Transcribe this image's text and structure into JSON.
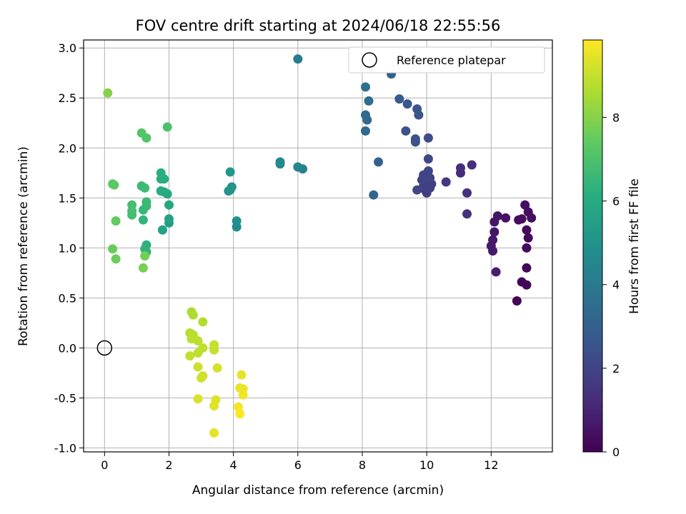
{
  "chart_data": {
    "type": "scatter",
    "title": "FOV centre drift starting at 2024/06/18 22:55:56",
    "xlabel": "Angular distance from reference (arcmin)",
    "ylabel": "Rotation from reference (arcmin)",
    "xlim": [
      -0.65,
      13.9
    ],
    "ylim": [
      -1.04,
      3.08
    ],
    "xticks": [
      0,
      2,
      4,
      6,
      8,
      10,
      12
    ],
    "yticks": [
      -1.0,
      -0.5,
      0.0,
      0.5,
      1.0,
      1.5,
      2.0,
      2.5,
      3.0
    ],
    "grid": true,
    "colormap": "viridis",
    "colorbar": {
      "label": "Hours from first FF file",
      "range": [
        0,
        9.85
      ],
      "ticks": [
        0,
        2,
        4,
        6,
        8
      ]
    },
    "legend": {
      "location": "top-right",
      "entries": [
        {
          "label": "Reference platepar",
          "marker": "open-circle"
        }
      ]
    },
    "reference_point": {
      "x": 0,
      "y": 0
    },
    "points": [
      {
        "x": 12.8,
        "y": 0.47,
        "h": 0.1
      },
      {
        "x": 13.1,
        "y": 0.63,
        "h": 0.15
      },
      {
        "x": 12.95,
        "y": 0.66,
        "h": 0.15
      },
      {
        "x": 13.1,
        "y": 0.8,
        "h": 0.2
      },
      {
        "x": 13.1,
        "y": 1.0,
        "h": 0.25
      },
      {
        "x": 13.15,
        "y": 1.1,
        "h": 0.25
      },
      {
        "x": 13.1,
        "y": 1.18,
        "h": 0.3
      },
      {
        "x": 12.85,
        "y": 1.28,
        "h": 0.3
      },
      {
        "x": 12.95,
        "y": 1.29,
        "h": 0.35
      },
      {
        "x": 13.25,
        "y": 1.3,
        "h": 0.35
      },
      {
        "x": 13.15,
        "y": 1.36,
        "h": 0.35
      },
      {
        "x": 13.05,
        "y": 1.43,
        "h": 0.4
      },
      {
        "x": 12.45,
        "y": 1.3,
        "h": 0.5
      },
      {
        "x": 12.2,
        "y": 1.32,
        "h": 0.55
      },
      {
        "x": 12.1,
        "y": 1.26,
        "h": 0.6
      },
      {
        "x": 12.1,
        "y": 1.16,
        "h": 0.6
      },
      {
        "x": 12.05,
        "y": 1.08,
        "h": 0.65
      },
      {
        "x": 12.0,
        "y": 1.02,
        "h": 0.7
      },
      {
        "x": 12.05,
        "y": 0.97,
        "h": 0.7
      },
      {
        "x": 12.15,
        "y": 0.76,
        "h": 0.8
      },
      {
        "x": 11.05,
        "y": 1.75,
        "h": 1.2
      },
      {
        "x": 11.05,
        "y": 1.8,
        "h": 1.25
      },
      {
        "x": 11.4,
        "y": 1.83,
        "h": 1.3
      },
      {
        "x": 11.25,
        "y": 1.55,
        "h": 1.35
      },
      {
        "x": 11.25,
        "y": 1.34,
        "h": 1.4
      },
      {
        "x": 10.6,
        "y": 1.66,
        "h": 1.6
      },
      {
        "x": 10.0,
        "y": 1.55,
        "h": 1.8
      },
      {
        "x": 9.95,
        "y": 1.58,
        "h": 1.8
      },
      {
        "x": 10.1,
        "y": 1.6,
        "h": 1.85
      },
      {
        "x": 9.9,
        "y": 1.62,
        "h": 1.85
      },
      {
        "x": 10.15,
        "y": 1.64,
        "h": 1.9
      },
      {
        "x": 10.05,
        "y": 1.66,
        "h": 1.9
      },
      {
        "x": 9.85,
        "y": 1.68,
        "h": 1.95
      },
      {
        "x": 10.1,
        "y": 1.7,
        "h": 1.95
      },
      {
        "x": 10.0,
        "y": 1.74,
        "h": 2.0
      },
      {
        "x": 9.9,
        "y": 1.73,
        "h": 2.0
      },
      {
        "x": 10.05,
        "y": 1.77,
        "h": 2.05
      },
      {
        "x": 9.7,
        "y": 1.58,
        "h": 2.1
      },
      {
        "x": 10.05,
        "y": 1.89,
        "h": 2.2
      },
      {
        "x": 10.05,
        "y": 2.1,
        "h": 2.3
      },
      {
        "x": 9.65,
        "y": 2.06,
        "h": 2.4
      },
      {
        "x": 9.65,
        "y": 2.09,
        "h": 2.45
      },
      {
        "x": 9.35,
        "y": 2.17,
        "h": 2.5
      },
      {
        "x": 9.75,
        "y": 2.33,
        "h": 2.6
      },
      {
        "x": 9.7,
        "y": 2.39,
        "h": 2.65
      },
      {
        "x": 9.4,
        "y": 2.44,
        "h": 2.7
      },
      {
        "x": 9.15,
        "y": 2.49,
        "h": 2.8
      },
      {
        "x": 8.9,
        "y": 2.74,
        "h": 3.0
      },
      {
        "x": 8.5,
        "y": 1.86,
        "h": 3.1
      },
      {
        "x": 8.35,
        "y": 1.53,
        "h": 3.2
      },
      {
        "x": 8.1,
        "y": 2.17,
        "h": 3.3
      },
      {
        "x": 8.15,
        "y": 2.28,
        "h": 3.35
      },
      {
        "x": 8.1,
        "y": 2.33,
        "h": 3.4
      },
      {
        "x": 8.2,
        "y": 2.47,
        "h": 3.5
      },
      {
        "x": 8.1,
        "y": 2.61,
        "h": 3.6
      },
      {
        "x": 6.0,
        "y": 2.89,
        "h": 4.1
      },
      {
        "x": 6.15,
        "y": 1.79,
        "h": 4.3
      },
      {
        "x": 6.0,
        "y": 1.81,
        "h": 4.4
      },
      {
        "x": 5.45,
        "y": 1.84,
        "h": 4.5
      },
      {
        "x": 5.45,
        "y": 1.86,
        "h": 4.6
      },
      {
        "x": 4.1,
        "y": 1.21,
        "h": 4.8
      },
      {
        "x": 4.1,
        "y": 1.27,
        "h": 4.9
      },
      {
        "x": 3.85,
        "y": 1.57,
        "h": 5.0
      },
      {
        "x": 3.9,
        "y": 1.58,
        "h": 5.05
      },
      {
        "x": 3.95,
        "y": 1.61,
        "h": 5.1
      },
      {
        "x": 3.9,
        "y": 1.76,
        "h": 5.2
      },
      {
        "x": 2.0,
        "y": 1.25,
        "h": 5.5
      },
      {
        "x": 2.0,
        "y": 1.29,
        "h": 5.6
      },
      {
        "x": 1.8,
        "y": 1.18,
        "h": 5.7
      },
      {
        "x": 2.0,
        "y": 1.43,
        "h": 5.8
      },
      {
        "x": 1.95,
        "y": 1.54,
        "h": 5.9
      },
      {
        "x": 1.85,
        "y": 1.56,
        "h": 6.0
      },
      {
        "x": 1.75,
        "y": 1.57,
        "h": 6.0
      },
      {
        "x": 1.85,
        "y": 1.69,
        "h": 6.1
      },
      {
        "x": 1.75,
        "y": 1.69,
        "h": 6.1
      },
      {
        "x": 1.75,
        "y": 1.75,
        "h": 6.2
      },
      {
        "x": 1.3,
        "y": 1.03,
        "h": 6.3
      },
      {
        "x": 1.3,
        "y": 0.96,
        "h": 6.35
      },
      {
        "x": 1.25,
        "y": 0.99,
        "h": 6.4
      },
      {
        "x": 1.2,
        "y": 1.28,
        "h": 6.45
      },
      {
        "x": 1.2,
        "y": 1.38,
        "h": 6.5
      },
      {
        "x": 1.3,
        "y": 1.42,
        "h": 6.55
      },
      {
        "x": 1.3,
        "y": 1.46,
        "h": 6.6
      },
      {
        "x": 1.15,
        "y": 1.62,
        "h": 6.65
      },
      {
        "x": 1.25,
        "y": 1.6,
        "h": 6.7
      },
      {
        "x": 0.85,
        "y": 1.33,
        "h": 6.8
      },
      {
        "x": 0.85,
        "y": 1.37,
        "h": 6.85
      },
      {
        "x": 0.85,
        "y": 1.43,
        "h": 6.9
      },
      {
        "x": 1.95,
        "y": 2.21,
        "h": 7.0
      },
      {
        "x": 1.3,
        "y": 2.1,
        "h": 7.1
      },
      {
        "x": 1.15,
        "y": 2.15,
        "h": 7.15
      },
      {
        "x": 0.25,
        "y": 1.64,
        "h": 7.3
      },
      {
        "x": 0.3,
        "y": 1.63,
        "h": 7.35
      },
      {
        "x": 0.35,
        "y": 1.27,
        "h": 7.45
      },
      {
        "x": 0.25,
        "y": 0.99,
        "h": 7.55
      },
      {
        "x": 0.35,
        "y": 0.89,
        "h": 7.6
      },
      {
        "x": 1.25,
        "y": 0.92,
        "h": 7.7
      },
      {
        "x": 1.2,
        "y": 0.8,
        "h": 7.8
      },
      {
        "x": 0.1,
        "y": 2.55,
        "h": 8.0
      },
      {
        "x": 2.7,
        "y": 0.36,
        "h": 8.6
      },
      {
        "x": 2.75,
        "y": 0.33,
        "h": 8.65
      },
      {
        "x": 3.05,
        "y": 0.26,
        "h": 8.7
      },
      {
        "x": 2.65,
        "y": 0.15,
        "h": 8.75
      },
      {
        "x": 2.75,
        "y": 0.13,
        "h": 8.8
      },
      {
        "x": 2.7,
        "y": 0.09,
        "h": 8.85
      },
      {
        "x": 2.9,
        "y": 0.07,
        "h": 8.85
      },
      {
        "x": 3.05,
        "y": 0.0,
        "h": 8.9
      },
      {
        "x": 2.9,
        "y": -0.05,
        "h": 8.9
      },
      {
        "x": 2.65,
        "y": -0.08,
        "h": 8.95
      },
      {
        "x": 3.4,
        "y": 0.03,
        "h": 9.0
      },
      {
        "x": 3.4,
        "y": -0.02,
        "h": 9.05
      },
      {
        "x": 2.9,
        "y": -0.19,
        "h": 9.1
      },
      {
        "x": 3.05,
        "y": -0.28,
        "h": 9.1
      },
      {
        "x": 3.0,
        "y": -0.3,
        "h": 9.15
      },
      {
        "x": 3.5,
        "y": -0.2,
        "h": 9.2
      },
      {
        "x": 2.9,
        "y": -0.51,
        "h": 9.3
      },
      {
        "x": 3.45,
        "y": -0.52,
        "h": 9.35
      },
      {
        "x": 3.4,
        "y": -0.58,
        "h": 9.4
      },
      {
        "x": 3.4,
        "y": -0.85,
        "h": 9.45
      },
      {
        "x": 4.25,
        "y": -0.27,
        "h": 9.5
      },
      {
        "x": 4.2,
        "y": -0.4,
        "h": 9.55
      },
      {
        "x": 4.3,
        "y": -0.41,
        "h": 9.6
      },
      {
        "x": 4.3,
        "y": -0.47,
        "h": 9.65
      },
      {
        "x": 4.15,
        "y": -0.59,
        "h": 9.7
      },
      {
        "x": 4.2,
        "y": -0.66,
        "h": 9.8
      }
    ]
  }
}
